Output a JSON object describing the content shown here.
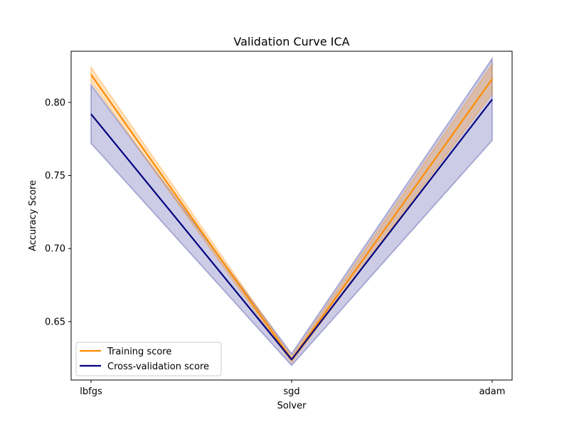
{
  "chart_data": {
    "type": "line",
    "title": "Validation Curve ICA",
    "xlabel": "Solver",
    "ylabel": "Accuracy Score",
    "categories": [
      "lbfgs",
      "sgd",
      "adam"
    ],
    "ylim": [
      0.61,
      0.835
    ],
    "yticks": [
      0.65,
      0.7,
      0.75,
      0.8
    ],
    "ytick_labels": [
      "0.65",
      "0.70",
      "0.75",
      "0.80"
    ],
    "grid": false,
    "legend_position": "lower-left",
    "series": [
      {
        "name": "Training score",
        "color": "#ff8c00",
        "values": [
          0.819,
          0.624,
          0.816
        ],
        "band_lower": [
          0.814,
          0.622,
          0.806
        ],
        "band_upper": [
          0.824,
          0.626,
          0.826
        ]
      },
      {
        "name": "Cross-validation score",
        "color": "#000080",
        "values": [
          0.792,
          0.624,
          0.802
        ],
        "band_lower": [
          0.772,
          0.62,
          0.774
        ],
        "band_upper": [
          0.812,
          0.628,
          0.83
        ]
      }
    ]
  }
}
